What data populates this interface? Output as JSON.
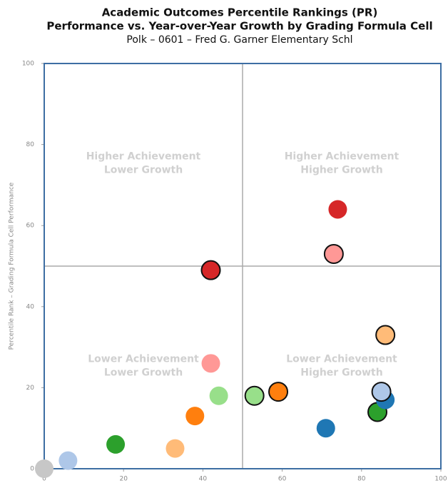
{
  "chart_data": {
    "type": "scatter",
    "title": "Academic Outcomes Percentile Rankings (PR)",
    "subtitle": [
      "Performance vs. Year-over-Year Growth by Grading Formula Cell",
      "Polk – 0601 – Fred G. Garner Elementary Schl"
    ],
    "y_label": "Percentile Rank – Grading Formula Cell Performance",
    "xlim": [
      0,
      100
    ],
    "ylim": [
      0,
      100
    ],
    "xticks": [
      0,
      20,
      40,
      60,
      80,
      100
    ],
    "yticks": [
      0,
      20,
      40,
      60,
      80,
      100
    ],
    "divider": {
      "x": 50,
      "y": 50
    },
    "annotations": [
      [
        "Higher Achievement",
        "Lower Growth"
      ],
      [
        "Higher Achievement",
        "Higher Growth"
      ],
      [
        "Lower Achievement",
        "Lower Growth"
      ],
      [
        "Lower Achievement",
        "Higher Growth"
      ]
    ],
    "x": [
      0,
      6,
      18,
      33,
      38,
      42,
      44,
      42,
      53,
      59,
      71,
      84,
      86,
      85,
      86,
      73,
      74
    ],
    "y": [
      0,
      2,
      6,
      5,
      13,
      26,
      18,
      49,
      18,
      19,
      10,
      14,
      17,
      19,
      33,
      53,
      64
    ],
    "colors": [
      "#c7c7c7",
      "#aec7e8",
      "#2ca02c",
      "#ffbb78",
      "#ff7f0e",
      "#ff9896",
      "#98df8a",
      "#d62728",
      "#98df8a",
      "#ff7f0e",
      "#1f77b4",
      "#2ca02c",
      "#1f77b4",
      "#aec7e8",
      "#ffbb78",
      "#ff9896",
      "#d62728"
    ],
    "outlined": [
      false,
      false,
      false,
      false,
      false,
      false,
      false,
      true,
      true,
      true,
      false,
      true,
      false,
      true,
      true,
      true,
      false
    ]
  }
}
